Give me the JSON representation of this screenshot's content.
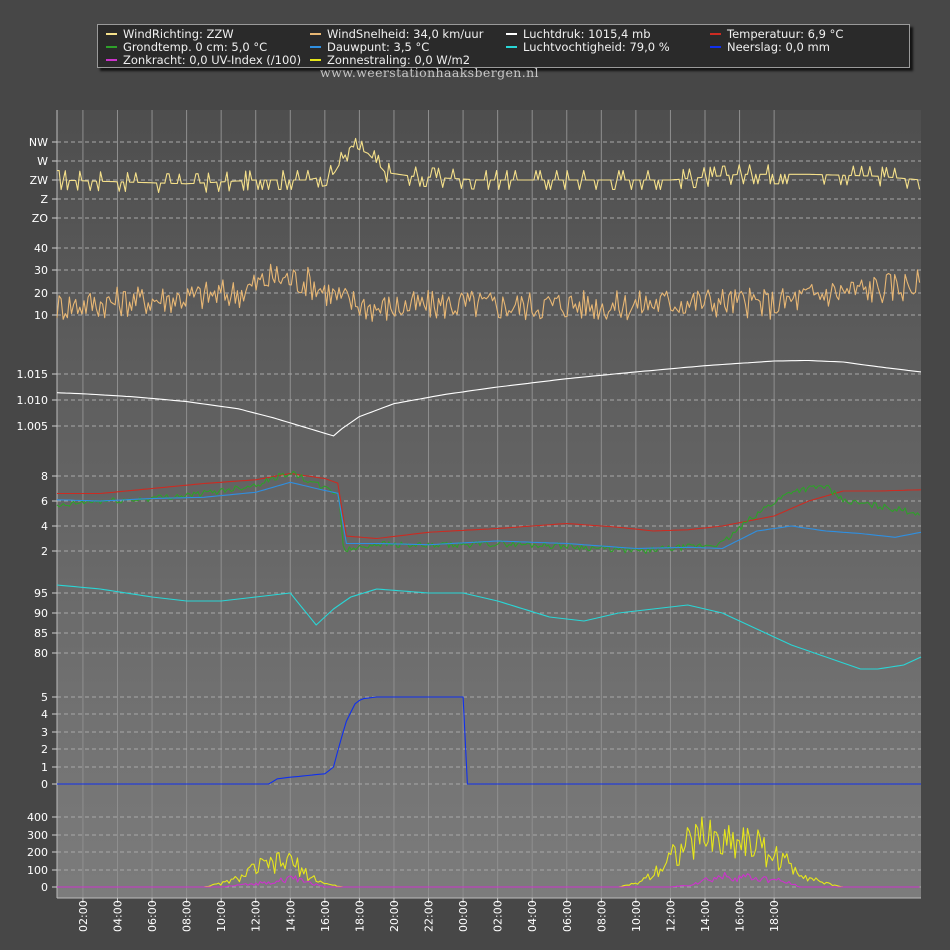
{
  "watermark": "www.weerstationhaaksbergen.nl",
  "legend": [
    {
      "label": "WindRichting: ZZW",
      "color": "#f5e08a"
    },
    {
      "label": "WindSnelheid: 34,0 km/uur",
      "color": "#e8b774"
    },
    {
      "label": "Luchtdruk: 1015,4 mb",
      "color": "#ffffff"
    },
    {
      "label": "Temperatuur: 6,9 °C",
      "color": "#cc2b22"
    },
    {
      "label": "Grondtemp. 0 cm: 5,0 °C",
      "color": "#2ea02a"
    },
    {
      "label": "Dauwpunt: 3,5 °C",
      "color": "#2f8fe0"
    },
    {
      "label": "Luchtvochtigheid: 79,0 %",
      "color": "#29d6d6"
    },
    {
      "label": "Neerslag: 0,0 mm",
      "color": "#1030ee"
    },
    {
      "label": "Zonkracht: 0,0 UV-Index (/100)",
      "color": "#cc33cc"
    },
    {
      "label": "Zonnestraling: 0,0 W/m2",
      "color": "#e6e61a"
    }
  ],
  "chart_data": {
    "type": "line",
    "x_tick_labels": [
      "02:00",
      "04:00",
      "06:00",
      "08:00",
      "10:00",
      "12:00",
      "14:00",
      "16:00",
      "18:00",
      "20:00",
      "22:00",
      "00:00",
      "02:00",
      "04:00",
      "06:00",
      "08:00",
      "10:00",
      "12:00",
      "14:00",
      "16:00",
      "18:00"
    ],
    "x_range_hours": [
      0.5,
      50.5
    ],
    "panels": [
      {
        "id": "wind-direction",
        "y_tick_labels": [
          "NW",
          "W",
          "ZW",
          "Z",
          "ZO"
        ],
        "y_tick_values": [
          7,
          6,
          5,
          4,
          3
        ],
        "ylim": [
          3,
          7
        ],
        "series": [
          {
            "name": "WindRichting",
            "color": "#f5e08a",
            "x": [
              0.5,
              8,
              12,
              15,
              16.5,
              17.5,
              18.5,
              19.5,
              21,
              25,
              32,
              36,
              40,
              44,
              48,
              50.5
            ],
            "values": [
              5.0,
              4.8,
              5.0,
              5.0,
              5.3,
              6.8,
              6.4,
              5.4,
              5.2,
              5.0,
              5.0,
              5.0,
              5.3,
              5.3,
              5.2,
              5.0
            ]
          }
        ]
      },
      {
        "id": "wind-speed",
        "y_tick_labels": [
          "40",
          "30",
          "20",
          "10"
        ],
        "y_tick_values": [
          40,
          30,
          20,
          10
        ],
        "ylim": [
          5,
          45
        ],
        "series": [
          {
            "name": "WindSnelheid",
            "color": "#e8b774",
            "x": [
              0.5,
              4,
              8,
              11,
              13,
              15,
              17,
              19,
              21,
              24,
              27,
              30,
              33,
              36,
              39,
              42,
              45,
              48,
              50.5
            ],
            "values": [
              14,
              16,
              18,
              20,
              27,
              25,
              17,
              13,
              14,
              15,
              14,
              15,
              14,
              16,
              16,
              15,
              20,
              22,
              24
            ]
          }
        ]
      },
      {
        "id": "pressure",
        "y_tick_labels": [
          "1.015",
          "1.010",
          "1.005"
        ],
        "y_tick_values": [
          1015,
          1010,
          1005
        ],
        "ylim": [
          1000,
          1018
        ],
        "series": [
          {
            "name": "Luchtdruk",
            "color": "#ffffff",
            "x": [
              0.5,
              2,
              5,
              8,
              11,
              13,
              15,
              16.5,
              17,
              18,
              20,
              23,
              26,
              30,
              34,
              38,
              42,
              44,
              46,
              48,
              50.5
            ],
            "values": [
              1011.4,
              1011.2,
              1010.6,
              1009.7,
              1008.3,
              1006.6,
              1004.6,
              1003.1,
              1004.5,
              1006.8,
              1009.3,
              1011.1,
              1012.5,
              1014.1,
              1015.4,
              1016.6,
              1017.5,
              1017.6,
              1017.3,
              1016.4,
              1015.4
            ]
          }
        ]
      },
      {
        "id": "temperature",
        "y_tick_labels": [
          "8",
          "6",
          "4",
          "2"
        ],
        "y_tick_values": [
          8,
          6,
          4,
          2
        ],
        "ylim": [
          0.8,
          9.6
        ],
        "series": [
          {
            "name": "Temperatuur",
            "color": "#cc2b22",
            "x": [
              0.5,
              3,
              6,
              9,
              12,
              14,
              16,
              16.8,
              17.2,
              19,
              22,
              26,
              30,
              33,
              35,
              37,
              39,
              42,
              44,
              46,
              48,
              50.5
            ],
            "values": [
              6.6,
              6.6,
              7.0,
              7.4,
              7.7,
              8.2,
              7.8,
              7.4,
              3.2,
              3.0,
              3.5,
              3.8,
              4.2,
              3.9,
              3.6,
              3.7,
              4.0,
              4.8,
              6.0,
              6.8,
              6.8,
              6.9
            ]
          },
          {
            "name": "Grondtemp. 0 cm",
            "color": "#2ea02a",
            "x": [
              0.5,
              2,
              5,
              9,
              12,
              14,
              16,
              16.8,
              17.1,
              19,
              22,
              26,
              30,
              34,
              37,
              39,
              41,
              43,
              45,
              46,
              48,
              50.5
            ],
            "values": [
              5.5,
              5.9,
              6.1,
              6.6,
              7.3,
              8.3,
              7.0,
              6.6,
              2.0,
              2.6,
              2.4,
              2.6,
              2.4,
              2.0,
              2.3,
              2.6,
              5.0,
              6.8,
              7.2,
              6.0,
              5.6,
              5.0
            ]
          },
          {
            "name": "Dauwpunt",
            "color": "#2f8fe0",
            "x": [
              0.5,
              3,
              6,
              9,
              12,
              14,
              15.5,
              16.8,
              17.2,
              19,
              22,
              26,
              30,
              34,
              37,
              39,
              41,
              43,
              45,
              47,
              49,
              50.5
            ],
            "values": [
              6.1,
              6.0,
              6.2,
              6.3,
              6.7,
              7.5,
              7.0,
              6.6,
              2.6,
              2.6,
              2.5,
              2.8,
              2.6,
              2.2,
              2.3,
              2.2,
              3.6,
              4.0,
              3.6,
              3.4,
              3.1,
              3.5
            ]
          }
        ]
      },
      {
        "id": "humidity",
        "y_tick_labels": [
          "95",
          "90",
          "85",
          "80"
        ],
        "y_tick_values": [
          95,
          90,
          85,
          80
        ],
        "ylim": [
          72,
          98
        ],
        "series": [
          {
            "name": "Luchtvochtigheid",
            "color": "#29d6d6",
            "x": [
              0.5,
              3,
              6,
              8,
              10,
              12,
              14,
              15.5,
              16.5,
              17.5,
              19,
              22,
              24,
              26,
              29,
              31,
              33,
              35,
              37,
              39,
              41,
              43,
              45,
              47,
              48,
              49.5,
              50.5
            ],
            "values": [
              97,
              96,
              94,
              93,
              93,
              94,
              95,
              87,
              91,
              94,
              96,
              95,
              95,
              93,
              89,
              88,
              90,
              91,
              92,
              90,
              86,
              82,
              79,
              76,
              76,
              77,
              79
            ]
          }
        ]
      },
      {
        "id": "precipitation",
        "y_tick_labels": [
          "5",
          "4",
          "3",
          "2",
          "1",
          "0"
        ],
        "y_tick_values": [
          5,
          4,
          3,
          2,
          1,
          0
        ],
        "ylim": [
          0,
          5
        ],
        "series": [
          {
            "name": "Neerslag",
            "color": "#1030ee",
            "x": [
              0.5,
              12.8,
              13.2,
              14,
              15,
              16,
              16.5,
              17.2,
              17.8,
              18.2,
              19,
              22,
              24,
              24.05,
              26,
              40,
              50.5
            ],
            "values": [
              0,
              0,
              0.3,
              0.4,
              0.5,
              0.6,
              1.0,
              3.5,
              4.7,
              4.9,
              5.0,
              5.0,
              5.0,
              0,
              0,
              0,
              0
            ]
          }
        ]
      },
      {
        "id": "solar",
        "y_tick_labels": [
          "400",
          "300",
          "200",
          "100",
          "0"
        ],
        "y_tick_values": [
          400,
          300,
          200,
          100,
          0
        ],
        "ylim": [
          0,
          460
        ],
        "series": [
          {
            "name": "Zonnestraling",
            "color": "#e6e61a",
            "x": [
              0.5,
              9,
              10,
              11,
              12,
              13,
              14,
              15,
              16,
              17,
              33,
              34,
              35,
              36,
              37,
              38,
              39,
              40,
              41,
              42,
              43,
              44,
              45,
              46,
              50.5
            ],
            "values": [
              0,
              0,
              20,
              50,
              110,
              130,
              150,
              70,
              20,
              0,
              0,
              20,
              80,
              180,
              240,
              300,
              260,
              280,
              240,
              180,
              120,
              60,
              20,
              0,
              0
            ]
          },
          {
            "name": "Zonkracht",
            "color": "#cc33cc",
            "x": [
              0.5,
              10,
              11,
              12.5,
              13.5,
              14.5,
              15.5,
              16,
              36,
              37,
              38,
              39,
              40,
              41,
              42,
              43,
              43.5,
              50.5
            ],
            "values": [
              0,
              0,
              10,
              25,
              45,
              45,
              15,
              0,
              0,
              10,
              40,
              60,
              60,
              50,
              40,
              20,
              0,
              0
            ]
          }
        ]
      }
    ]
  }
}
